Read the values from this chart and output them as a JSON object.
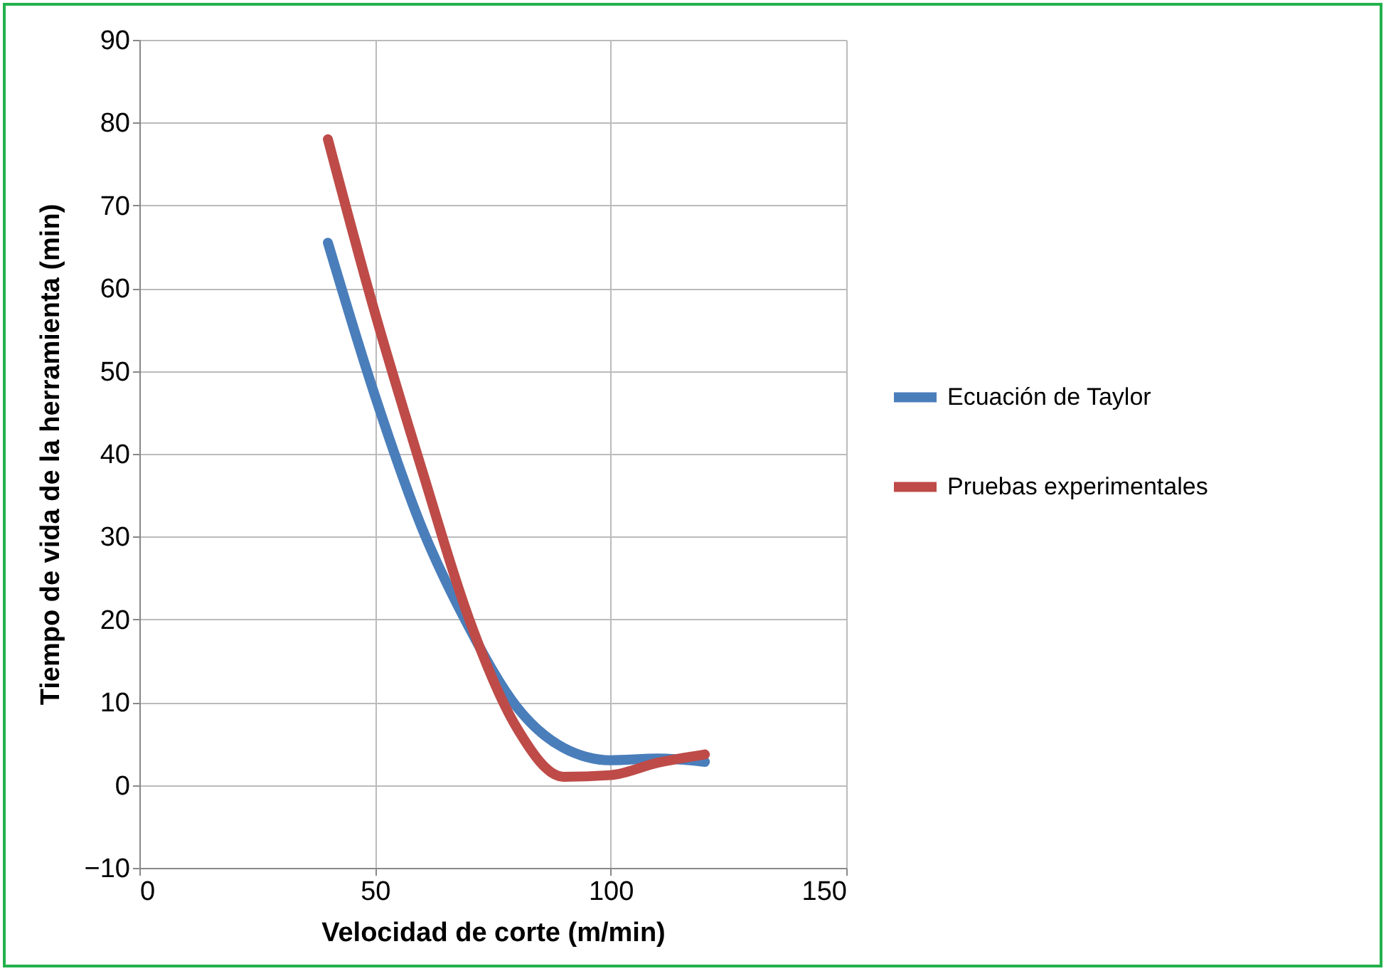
{
  "chart_data": {
    "type": "line",
    "xlabel": "Velocidad de corte (m/min)",
    "ylabel": "Tiempo de vida de la herramienta (min)",
    "x": [
      40,
      50,
      60,
      70,
      80,
      90,
      100,
      110,
      120
    ],
    "series": [
      {
        "name": "Ecuación de Taylor",
        "color": "#4a7ebb",
        "values": [
          65.5,
          47,
          31,
          19,
          9.5,
          4.5,
          3,
          3.2,
          2.8
        ]
      },
      {
        "name": "Pruebas experimentales",
        "color": "#be4b48",
        "values": [
          78,
          57,
          38,
          20,
          7,
          1,
          1.2,
          2.7,
          3.7
        ]
      }
    ],
    "xlim": [
      0,
      150
    ],
    "xticks": [
      0,
      50,
      100,
      150
    ],
    "ylim": [
      -10,
      90
    ],
    "yticks": [
      -10,
      0,
      10,
      20,
      30,
      40,
      50,
      60,
      70,
      80,
      90
    ],
    "grid": true,
    "legend": "right",
    "marker": "none",
    "line_style": "solid"
  }
}
